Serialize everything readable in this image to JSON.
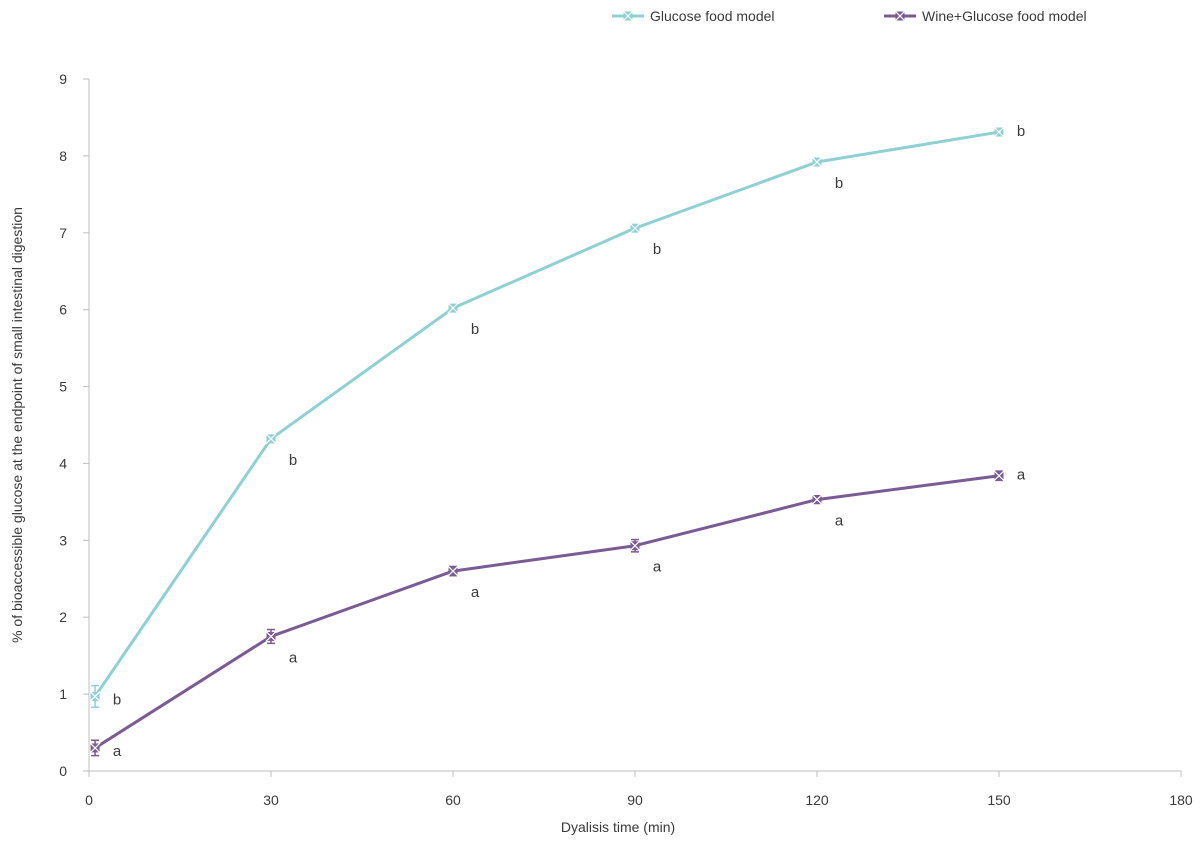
{
  "chart_data": {
    "type": "line",
    "title": "",
    "xlabel": "Dyalisis time (min)",
    "ylabel": "% of bioaccessible glucose at the endpoint of small intestinal digestion",
    "xlim": [
      0,
      180
    ],
    "ylim": [
      0,
      9
    ],
    "xticks": [
      "0",
      "30",
      "60",
      "90",
      "120",
      "150",
      "180"
    ],
    "yticks": [
      "0",
      "1",
      "2",
      "3",
      "4",
      "5",
      "6",
      "7",
      "8",
      "9"
    ],
    "grid": false,
    "legend_position": "top",
    "x": [
      1,
      30,
      60,
      90,
      120,
      150
    ],
    "series": [
      {
        "name": "Glucose food model",
        "color": "#8fd0d3",
        "values": [
          0.97,
          4.32,
          6.02,
          7.06,
          7.92,
          8.31
        ],
        "errors": [
          0.14,
          0.03,
          0.03,
          0.03,
          0.03,
          0.03
        ],
        "sig_labels": [
          "b",
          "b",
          "b",
          "b",
          "b",
          "b"
        ]
      },
      {
        "name": "Wine+Glucose food model",
        "color": "#7a5b94",
        "values": [
          0.3,
          1.75,
          2.6,
          2.93,
          3.53,
          3.84
        ],
        "errors": [
          0.1,
          0.09,
          0.06,
          0.08,
          0.05,
          0.06
        ],
        "sig_labels": [
          "a",
          "a",
          "a",
          "a",
          "a",
          "a"
        ]
      }
    ]
  }
}
